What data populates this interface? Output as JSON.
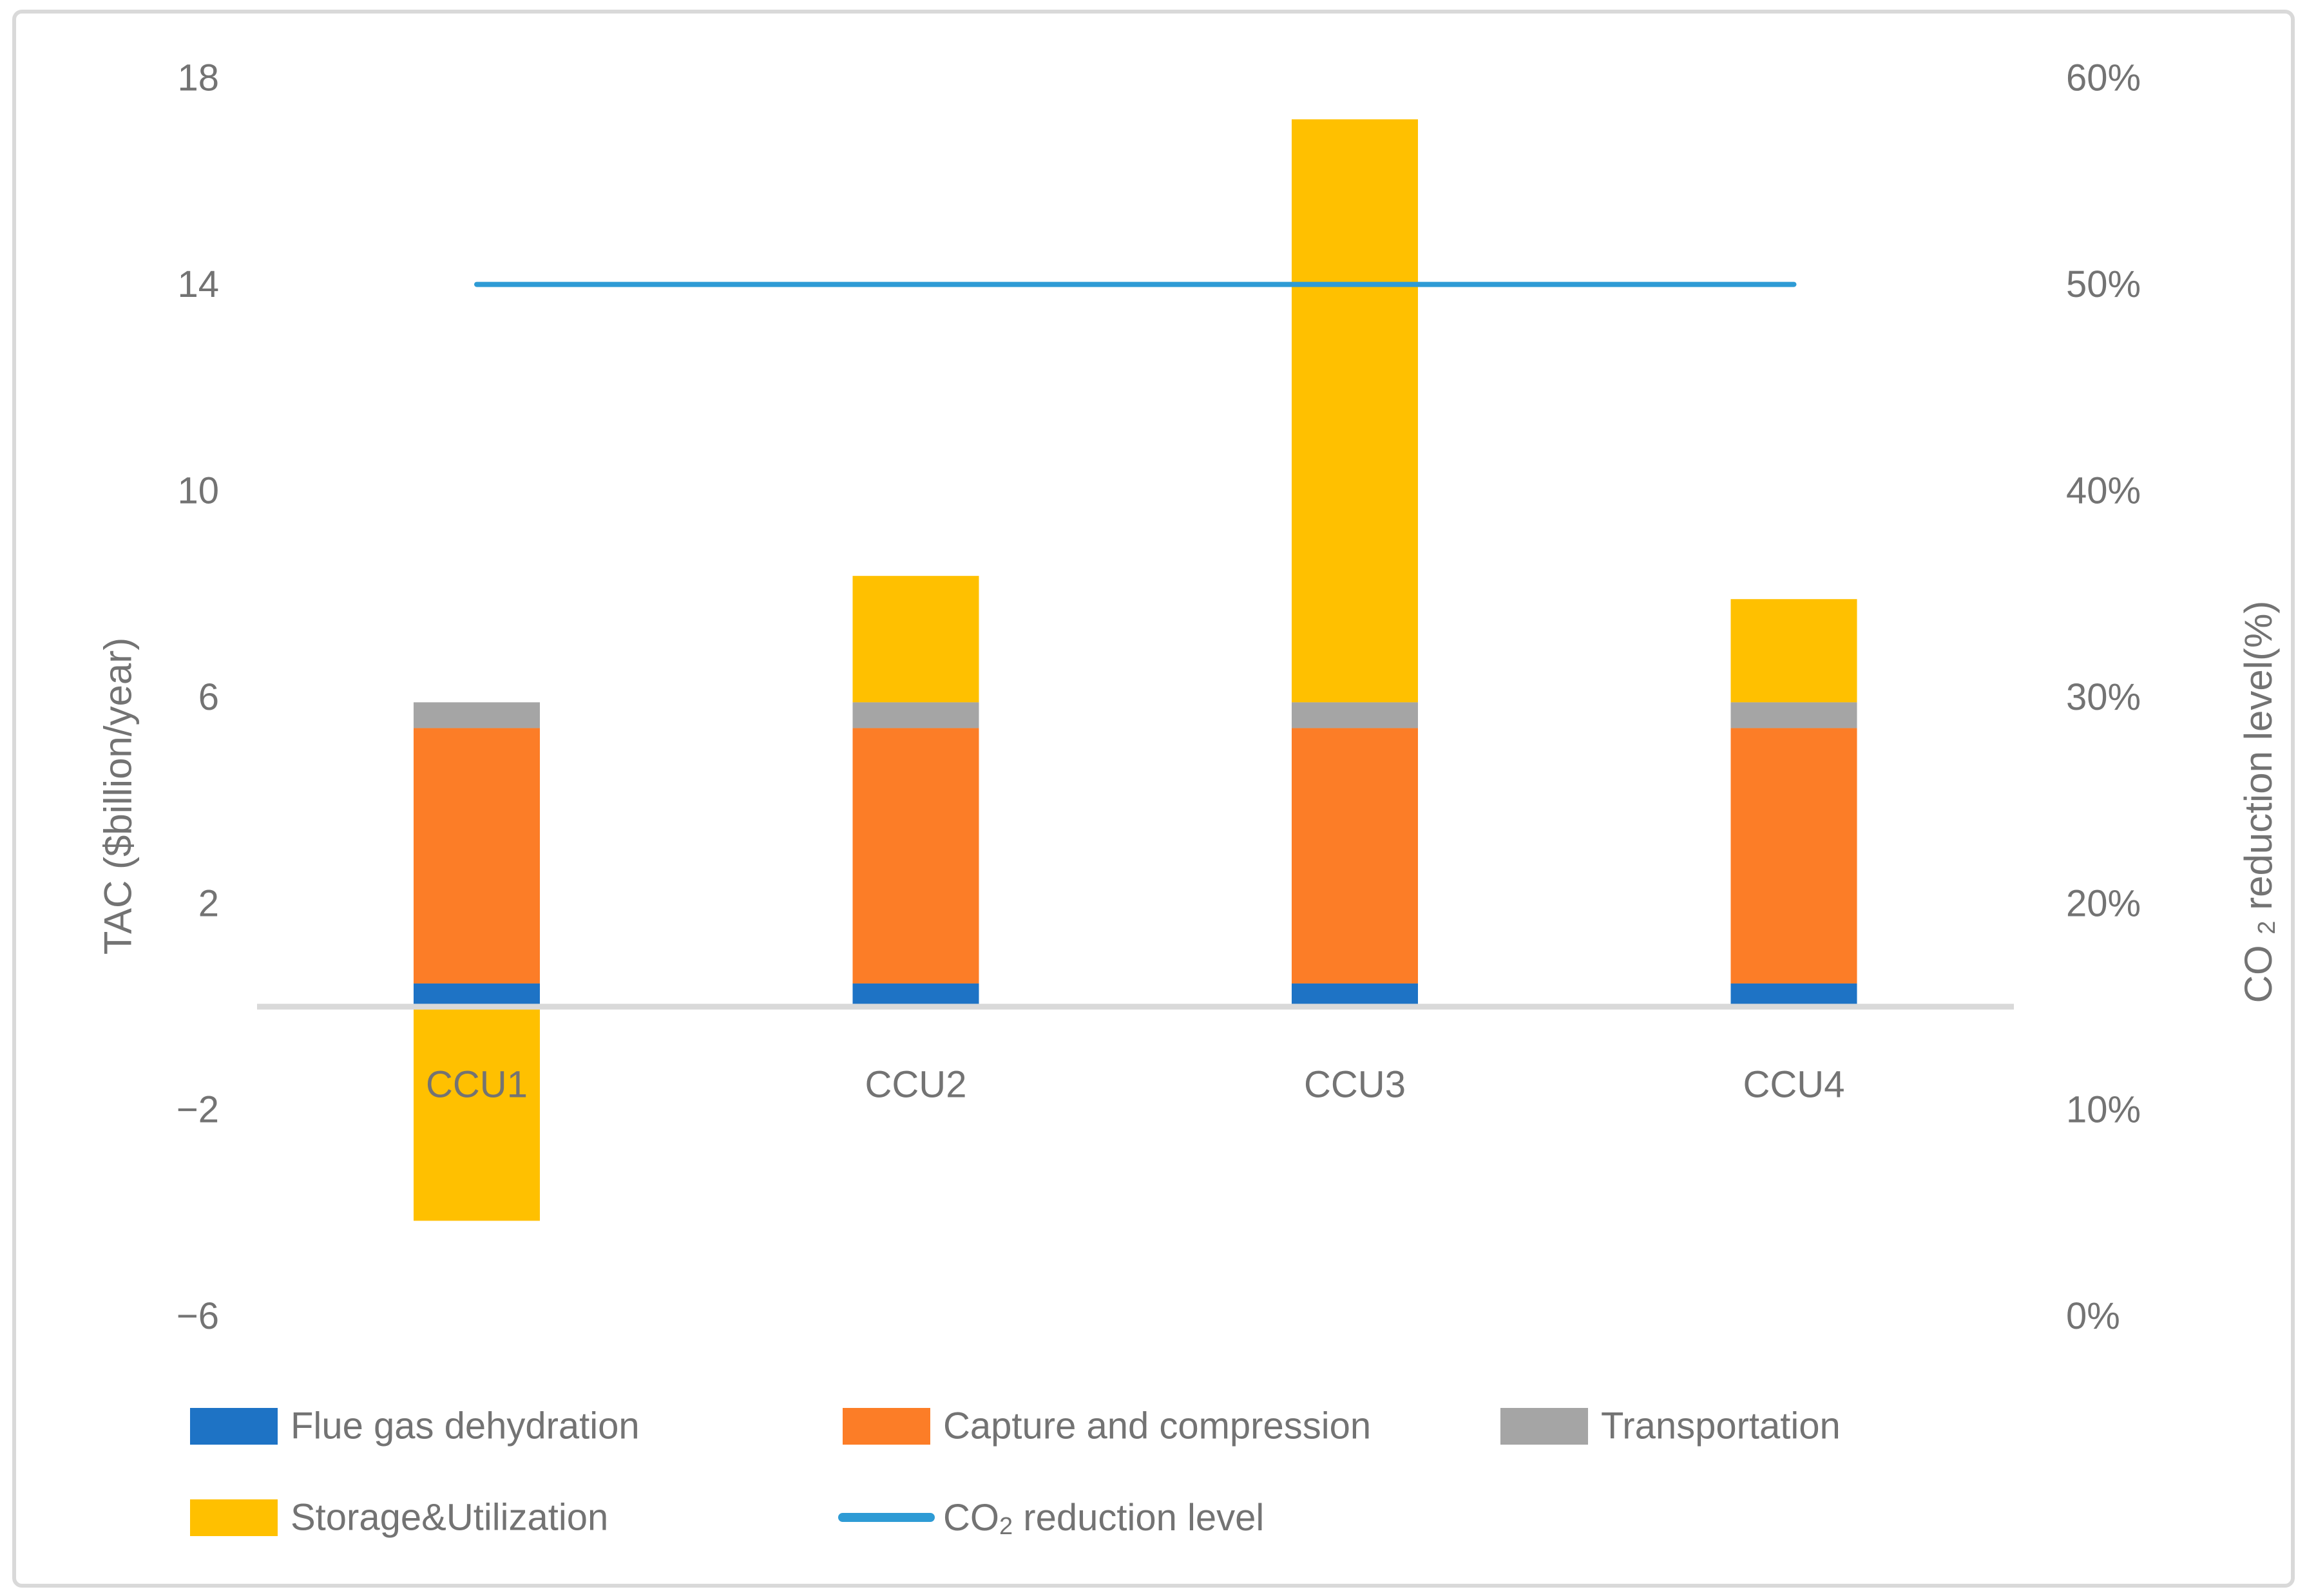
{
  "figure": {
    "background_color": "#ffffff",
    "border_color": "#d9d9d9",
    "text_color": "#737373"
  },
  "chart_data": {
    "type": "combo-stacked-bar-line",
    "categories": [
      "CCU1",
      "CCU2",
      "CCU3",
      "CCU4"
    ],
    "bar_series": [
      {
        "name": "Flue gas dehydration",
        "color": "#1e73c5",
        "values": [
          0.45,
          0.45,
          0.45,
          0.45
        ]
      },
      {
        "name": "Capture and compression",
        "color": "#fc7d27",
        "values": [
          4.95,
          4.95,
          4.95,
          4.95
        ]
      },
      {
        "name": "Transportation",
        "color": "#a5a5a5",
        "values": [
          0.5,
          0.5,
          0.5,
          0.5
        ]
      },
      {
        "name": "Storage&Utilization",
        "color": "#ffc000",
        "values": [
          -4.15,
          2.45,
          11.3,
          2.0
        ]
      }
    ],
    "line_series": {
      "name": "CO2 reduction level",
      "label_parts": {
        "prefix": "CO",
        "sub": "2",
        "suffix": " reduction level"
      },
      "color": "#2e9bd5",
      "values_percent": [
        50,
        50,
        50,
        50
      ]
    },
    "left_axis": {
      "title": "TAC ($billion/year)",
      "tick_labels": [
        "18",
        "14",
        "10",
        "6",
        "2",
        "−2",
        "−6"
      ],
      "tick_values": [
        18,
        14,
        10,
        6,
        2,
        -2,
        -6
      ],
      "range": [
        -6,
        18
      ]
    },
    "right_axis": {
      "title_parts": {
        "prefix": "CO",
        "sub": "2",
        "suffix": " reduction level(%)"
      },
      "tick_labels": [
        "60%",
        "50%",
        "40%",
        "30%",
        "20%",
        "10%",
        "0%"
      ],
      "tick_values": [
        60,
        50,
        40,
        30,
        20,
        10,
        0
      ],
      "range": [
        0,
        60
      ]
    },
    "legend": {
      "rows": [
        [
          "Flue gas dehydration",
          "Capture and compression",
          "Transportation"
        ],
        [
          "Storage&Utilization",
          "CO2 reduction level"
        ]
      ]
    }
  }
}
